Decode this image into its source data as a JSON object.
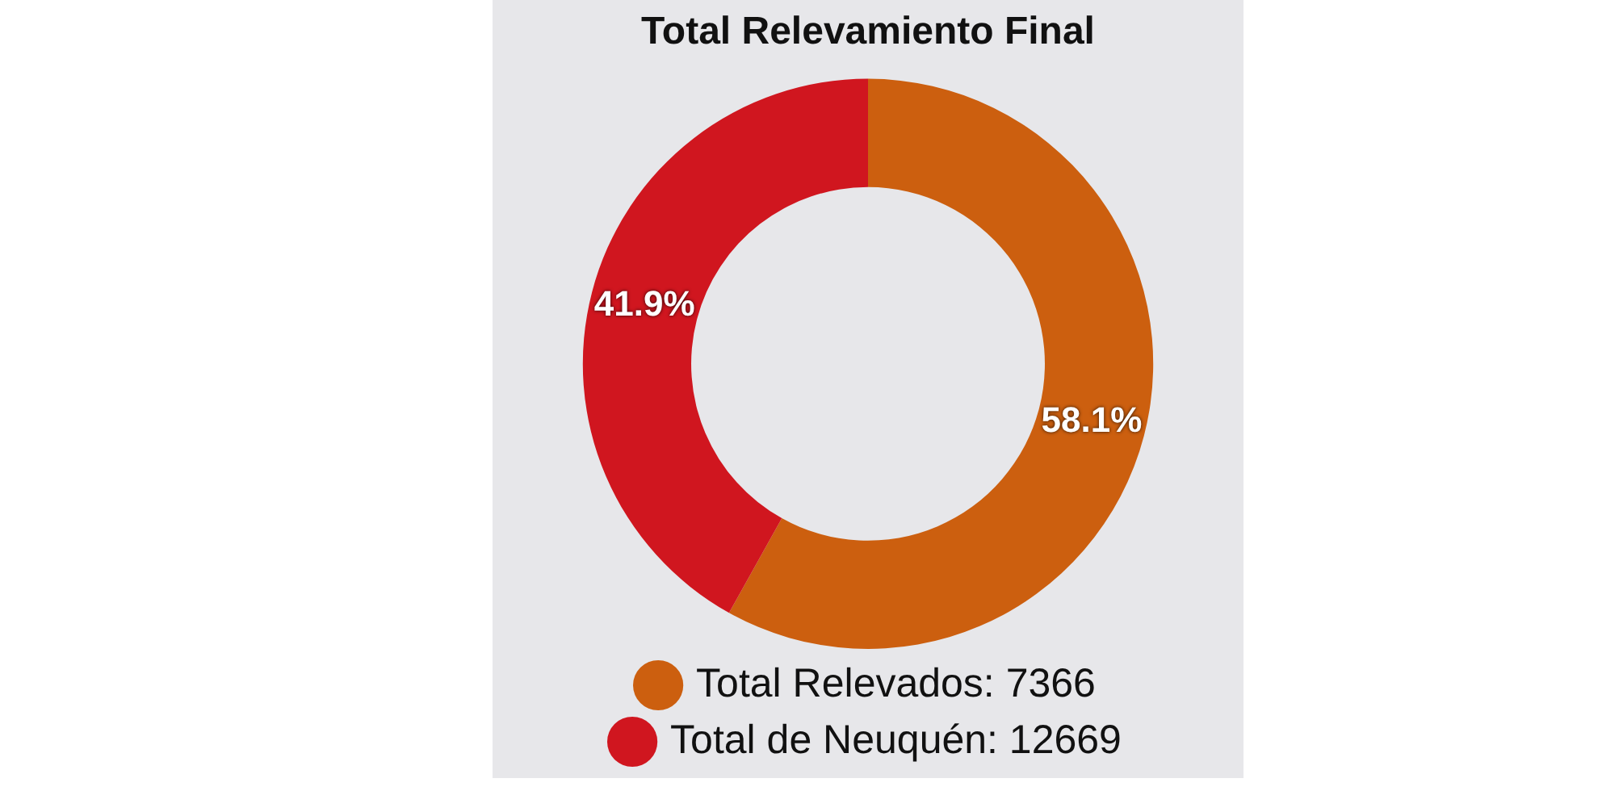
{
  "chart_data": {
    "type": "donut",
    "title": "Total Relevamiento Final",
    "categories": [
      "Total Relevados: 7366",
      "Total de Neuquén: 12669"
    ],
    "values": [
      58.1,
      41.9
    ],
    "colors": [
      "#cc5f0f",
      "#d0161f"
    ],
    "value_labels": [
      "58.1%",
      "41.9%"
    ],
    "legend": "bottom"
  }
}
